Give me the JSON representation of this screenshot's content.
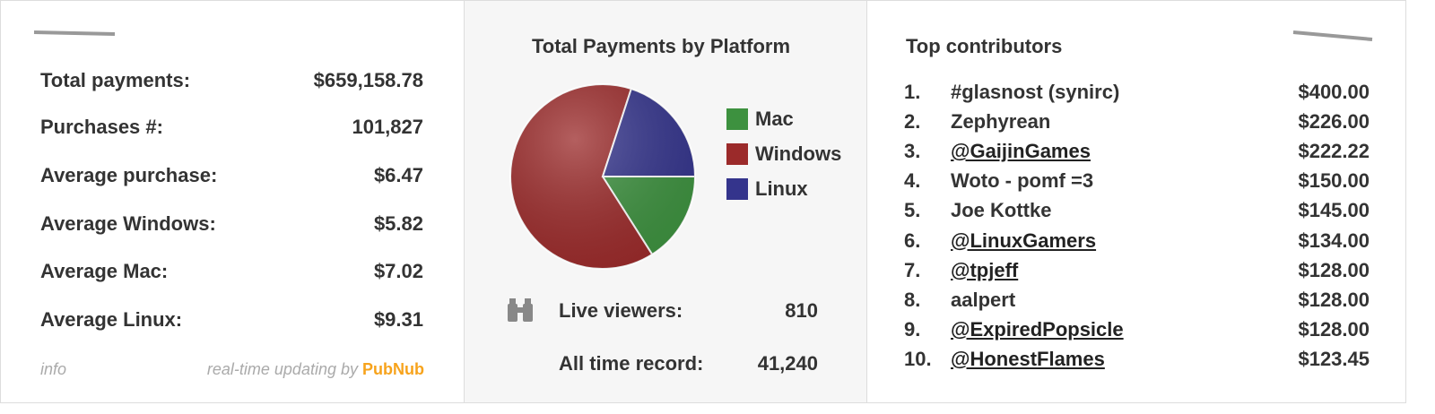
{
  "stats": {
    "rows": [
      {
        "label": "Total payments:",
        "value": "$659,158.78"
      },
      {
        "label": "Purchases #:",
        "value": "101,827"
      },
      {
        "label": "Average purchase:",
        "value": "$6.47"
      },
      {
        "label": "Average Windows:",
        "value": "$5.82"
      },
      {
        "label": "Average Mac:",
        "value": "$7.02"
      },
      {
        "label": "Average Linux:",
        "value": "$9.31"
      }
    ],
    "footer": {
      "info": "info",
      "credit": "real-time updating by",
      "brand": "PubNub"
    }
  },
  "chart_data": {
    "type": "pie",
    "title": "Total Payments by Platform",
    "categories": [
      "Mac",
      "Windows",
      "Linux"
    ],
    "values": [
      16,
      64,
      20
    ],
    "colors": [
      "#3d913f",
      "#9b2a2a",
      "#34348c"
    ]
  },
  "viewers": {
    "live_label": "Live viewers:",
    "live_value": "810",
    "record_label": "All time record:",
    "record_value": "41,240"
  },
  "contributors": {
    "title": "Top contributors",
    "rows": [
      {
        "rank": "1.",
        "name": "#glasnost (synirc)",
        "amount": "$400.00",
        "link": false
      },
      {
        "rank": "2.",
        "name": "Zephyrean",
        "amount": "$226.00",
        "link": false
      },
      {
        "rank": "3.",
        "name": "@GaijinGames",
        "amount": "$222.22",
        "link": true
      },
      {
        "rank": "4.",
        "name": "Woto - pomf =3",
        "amount": "$150.00",
        "link": false
      },
      {
        "rank": "5.",
        "name": "Joe Kottke",
        "amount": "$145.00",
        "link": false
      },
      {
        "rank": "6.",
        "name": "@LinuxGamers",
        "amount": "$134.00",
        "link": true
      },
      {
        "rank": "7.",
        "name": "@tpjeff",
        "amount": "$128.00",
        "link": true
      },
      {
        "rank": "8.",
        "name": "aalpert",
        "amount": "$128.00",
        "link": false
      },
      {
        "rank": "9.",
        "name": "@ExpiredPopsicle",
        "amount": "$128.00",
        "link": true
      },
      {
        "rank": "10.",
        "name": "@HonestFlames",
        "amount": "$123.45",
        "link": true
      }
    ]
  }
}
